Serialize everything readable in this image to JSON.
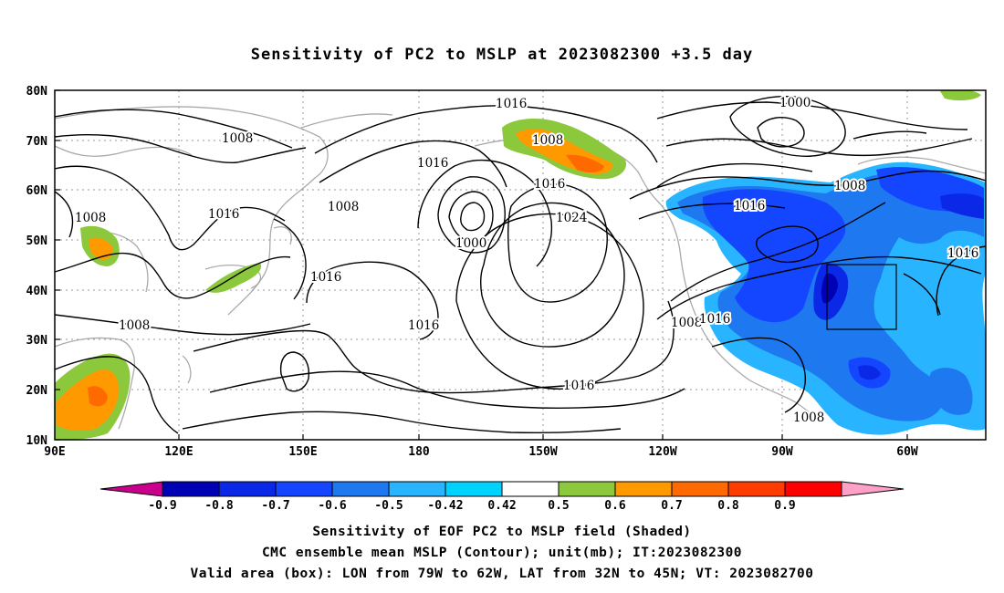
{
  "title": "Sensitivity of PC2 to MSLP at 2023082300 +3.5 day",
  "lat_labels": [
    "80N",
    "70N",
    "60N",
    "50N",
    "40N",
    "30N",
    "20N",
    "10N"
  ],
  "lon_labels": [
    "90E",
    "120E",
    "150E",
    "180",
    "150W",
    "120W",
    "90W",
    "60W"
  ],
  "contour_labels": [
    "1016",
    "1008",
    "1000",
    "1008",
    "1016",
    "1008",
    "1008",
    "1016",
    "1016",
    "1008",
    "1016",
    "1024",
    "1000",
    "1008",
    "1016",
    "1016",
    "1016",
    "1016",
    "1008",
    "1016",
    "1016",
    "1008"
  ],
  "colorbar": {
    "tick_labels": [
      "-0.9",
      "-0.8",
      "-0.7",
      "-0.6",
      "-0.5",
      "-0.42",
      "0.42",
      "0.5",
      "0.6",
      "0.7",
      "0.8",
      "0.9"
    ],
    "colors": [
      "#c8008c",
      "#0000b4",
      "#0a28e6",
      "#1446ff",
      "#1e78f0",
      "#28b4ff",
      "#00d2ff",
      "#ffffff",
      "#8cc83c",
      "#ff9900",
      "#ff6a00",
      "#ff3c00",
      "#ff0000",
      "#ffa0c8"
    ]
  },
  "captions": [
    "Sensitivity of EOF PC2 to MSLP field (Shaded)",
    "CMC ensemble mean MSLP (Contour); unit(mb); IT:2023082300",
    "Valid area (box): LON from 79W to 62W, LAT from 32N to 45N; VT: 2023082700"
  ]
}
